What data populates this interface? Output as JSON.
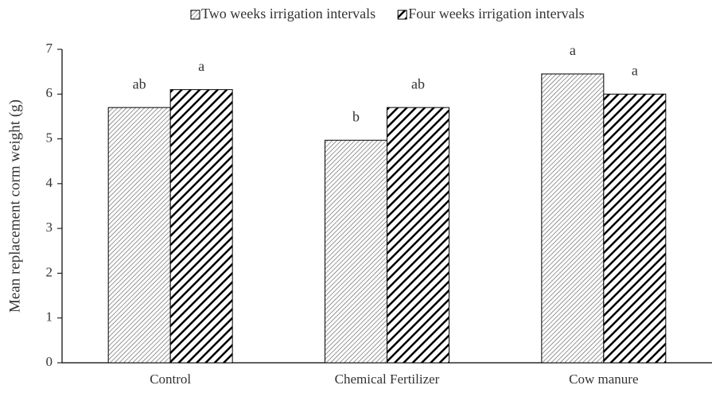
{
  "chart_data": {
    "type": "bar",
    "y_label": "Mean replacement corm weight (g)",
    "categories": [
      "Control",
      "Chemical Fertilizer",
      "Cow manure"
    ],
    "series": [
      {
        "name": "Two weeks irrigation intervals",
        "color": "#555555",
        "hatch": "fine",
        "values": [
          5.7,
          4.97,
          6.45
        ],
        "annotations": [
          "ab",
          "b",
          "a"
        ]
      },
      {
        "name": "Four weeks irrigation intervals",
        "color": "#000000",
        "hatch": "bold",
        "values": [
          6.1,
          5.7,
          6.0
        ],
        "annotations": [
          "a",
          "ab",
          "a"
        ]
      }
    ],
    "ylim": [
      0,
      7
    ],
    "yticks": [
      0,
      1,
      2,
      3,
      4,
      5,
      6,
      7
    ],
    "grid": false,
    "legend": "top"
  }
}
